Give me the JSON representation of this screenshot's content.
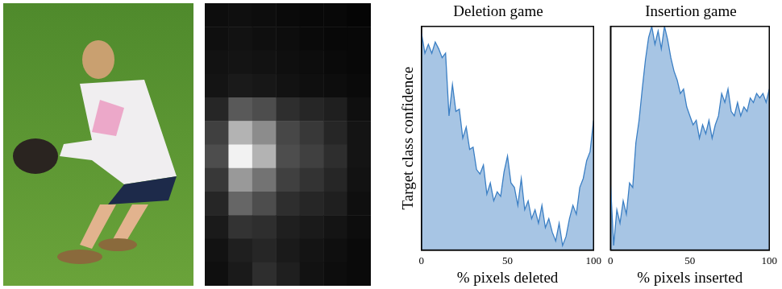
{
  "chart_data": [
    {
      "type": "heatmap",
      "zlim": [
        0,
        1
      ],
      "cells": [
        [
          0.05,
          0.06,
          0.05,
          0.04,
          0.03,
          0.03,
          0.02
        ],
        [
          0.06,
          0.07,
          0.06,
          0.05,
          0.04,
          0.03,
          0.03
        ],
        [
          0.07,
          0.08,
          0.07,
          0.06,
          0.05,
          0.04,
          0.03
        ],
        [
          0.08,
          0.1,
          0.09,
          0.07,
          0.06,
          0.05,
          0.04
        ],
        [
          0.15,
          0.35,
          0.3,
          0.18,
          0.15,
          0.12,
          0.06
        ],
        [
          0.25,
          0.7,
          0.55,
          0.28,
          0.22,
          0.15,
          0.08
        ],
        [
          0.3,
          0.95,
          0.7,
          0.3,
          0.25,
          0.18,
          0.08
        ],
        [
          0.22,
          0.6,
          0.45,
          0.25,
          0.2,
          0.15,
          0.07
        ],
        [
          0.15,
          0.4,
          0.3,
          0.18,
          0.15,
          0.12,
          0.06
        ],
        [
          0.1,
          0.2,
          0.18,
          0.12,
          0.1,
          0.08,
          0.05
        ],
        [
          0.07,
          0.12,
          0.15,
          0.1,
          0.08,
          0.06,
          0.04
        ],
        [
          0.06,
          0.1,
          0.18,
          0.12,
          0.07,
          0.05,
          0.04
        ]
      ]
    },
    {
      "type": "area",
      "title": "Deletion game",
      "xlabel": "% pixels deleted",
      "ylabel": "Target class confidence",
      "xlim": [
        0,
        100
      ],
      "xticks": [
        0,
        50,
        100
      ],
      "ylim": [
        0,
        1
      ],
      "tick_labels": "x",
      "grid": false,
      "x": [
        0,
        2,
        4,
        6,
        8,
        10,
        12,
        14,
        16,
        18,
        20,
        22,
        24,
        26,
        28,
        30,
        32,
        34,
        36,
        38,
        40,
        42,
        44,
        46,
        48,
        50,
        52,
        54,
        56,
        58,
        60,
        62,
        64,
        66,
        68,
        70,
        72,
        74,
        76,
        78,
        80,
        82,
        84,
        86,
        88,
        90,
        92,
        94,
        96,
        98,
        100
      ],
      "values": [
        0.97,
        0.88,
        0.92,
        0.88,
        0.93,
        0.9,
        0.86,
        0.88,
        0.6,
        0.74,
        0.62,
        0.63,
        0.5,
        0.55,
        0.45,
        0.46,
        0.36,
        0.34,
        0.38,
        0.25,
        0.3,
        0.22,
        0.26,
        0.24,
        0.35,
        0.42,
        0.3,
        0.28,
        0.2,
        0.32,
        0.18,
        0.22,
        0.14,
        0.18,
        0.12,
        0.2,
        0.1,
        0.14,
        0.08,
        0.04,
        0.12,
        0.02,
        0.06,
        0.14,
        0.2,
        0.16,
        0.28,
        0.32,
        0.4,
        0.44,
        0.58
      ],
      "color": "#3b7fc4"
    },
    {
      "type": "area",
      "title": "Insertion game",
      "xlabel": "% pixels inserted",
      "xlim": [
        0,
        100
      ],
      "xticks": [
        0,
        50,
        100
      ],
      "ylim": [
        0,
        1
      ],
      "tick_labels": "x",
      "grid": false,
      "x": [
        0,
        2,
        4,
        6,
        8,
        10,
        12,
        14,
        16,
        18,
        20,
        22,
        24,
        26,
        28,
        30,
        32,
        34,
        36,
        38,
        40,
        42,
        44,
        46,
        48,
        50,
        52,
        54,
        56,
        58,
        60,
        62,
        64,
        66,
        68,
        70,
        72,
        74,
        76,
        78,
        80,
        82,
        84,
        86,
        88,
        90,
        92,
        94,
        96,
        98,
        100
      ],
      "values": [
        0.3,
        0.02,
        0.18,
        0.12,
        0.22,
        0.16,
        0.3,
        0.28,
        0.48,
        0.58,
        0.72,
        0.85,
        0.95,
        1.0,
        0.92,
        0.98,
        0.9,
        1.0,
        0.94,
        0.86,
        0.8,
        0.76,
        0.7,
        0.72,
        0.64,
        0.6,
        0.56,
        0.58,
        0.5,
        0.56,
        0.52,
        0.58,
        0.5,
        0.56,
        0.6,
        0.7,
        0.66,
        0.72,
        0.62,
        0.6,
        0.66,
        0.6,
        0.64,
        0.62,
        0.68,
        0.66,
        0.7,
        0.68,
        0.7,
        0.66,
        0.72
      ],
      "color": "#3b7fc4"
    }
  ]
}
